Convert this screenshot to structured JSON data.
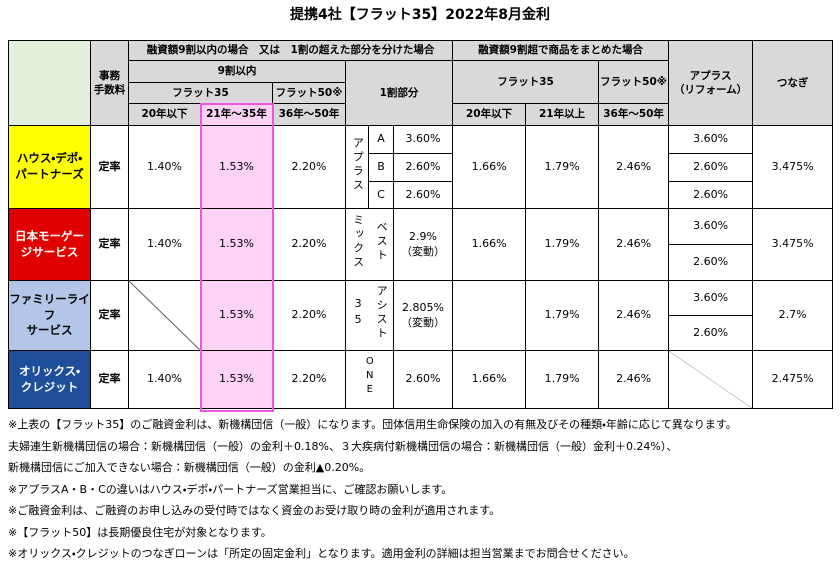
{
  "header": {
    "title": "提携4社【フラット35】2022年8月金利"
  },
  "table": {
    "head": {
      "fee": [
        "事務",
        "手数料"
      ],
      "group_within": "融資額9割以内の場合　又は　1割の超えた部分を分けた場合",
      "group_over": "融資額9割超で商品をまとめた場合",
      "within_90": "9割以内",
      "flat35": "フラット35",
      "flat50": "フラット50※",
      "part_10": "1割部分",
      "over_flat35": "フラット35",
      "over_flat50": "フラット50※",
      "aplus": [
        "アプラス",
        "（リフォーム）"
      ],
      "tsunagi": "つなぎ",
      "terms": [
        "20年以下",
        "21年～35年",
        "36年～50年"
      ],
      "over_terms": [
        "20年以下",
        "21年以上",
        "36年～50年"
      ]
    },
    "rows": [
      {
        "name": [
          "ハウス・デポ・",
          "パートナーズ"
        ],
        "fee": "定率",
        "r20": "1.40%",
        "r35": "1.53%",
        "r50": "2.20%",
        "part_label": "アプラス",
        "part_sub": [
          "A",
          "B",
          "C"
        ],
        "part_rates": [
          "3.60%",
          "2.60%",
          "2.60%"
        ],
        "o20": "1.66%",
        "o35": "1.79%",
        "o50": "2.46%",
        "aplus": [
          "3.60%",
          "2.60%",
          "2.60%"
        ],
        "tsunagi": "3.475%"
      },
      {
        "name": [
          "日本モーゲー",
          "ジサービス"
        ],
        "fee": "定率",
        "r20": "1.40%",
        "r35": "1.53%",
        "r50": "2.20%",
        "part_label": "ミックス",
        "part_sub": "ベスト",
        "part_rate": "2.9%",
        "part_note": "（変動）",
        "o20": "1.66%",
        "o35": "1.79%",
        "o50": "2.46%",
        "aplus": [
          "3.60%",
          "2.60%"
        ],
        "tsunagi": "3.475%"
      },
      {
        "name": [
          "ファミリーライフ",
          "サービス"
        ],
        "fee": "定率",
        "r35": "1.53%",
        "r50": "2.20%",
        "part_label": "35",
        "part_sub": "アシスト",
        "part_rate": "2.805%",
        "part_note": "（変動）",
        "o35": "1.79%",
        "o50": "2.46%",
        "aplus": [
          "3.60%",
          "2.60%"
        ],
        "tsunagi": "2.7%"
      },
      {
        "name": [
          "オリックス・",
          "クレジット"
        ],
        "fee": "定率",
        "r20": "1.40%",
        "r35": "1.53%",
        "r50": "2.20%",
        "part_label": "ONE",
        "part_rate": "2.60%",
        "o20": "1.66%",
        "o35": "1.79%",
        "o50": "2.46%",
        "tsunagi": "2.475%"
      }
    ]
  },
  "notes": [
    "※上表の【フラット35】のご融資金利は、新機構団信（一般）になります。団体信用生命保険の加入の有無及びその種類・年齢に応じて異なります。",
    "夫婦連生新機構団信の場合：新機構団信（一般）の金利＋0.18%、３大疾病付新機構団信の場合：新機構団信（一般）金利＋0.24%）、",
    "新機構団信にご加入できない場合：新機構団信（一般）の金利▲0.20%。",
    "※アプラスA・B・Cの違いはハウス・デポ・パートナーズ営業担当に、ご確認お願いします。",
    "※ご融資金利は、ご融資のお申し込みの受付時ではなく資金のお受け取り時の金利が適用されます。",
    "※【フラット50】は長期優良住宅が対象となります。",
    "※オリックス・クレジットのつなぎローンは「所定の固定金利」となります。適用金利の詳細は担当営業までお問合せください。"
  ]
}
